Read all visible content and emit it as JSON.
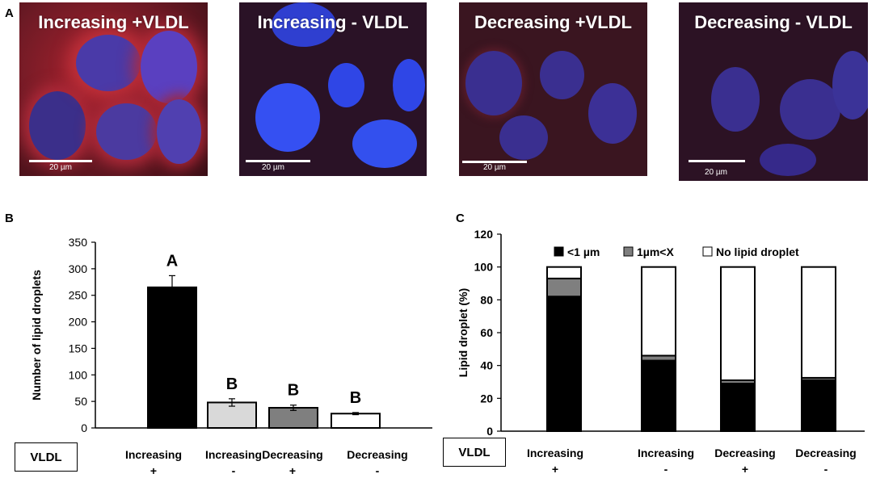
{
  "panel_a": {
    "letter": "A",
    "images": [
      {
        "caption": "Increasing +VLDL",
        "scale": "20 µm"
      },
      {
        "caption": "Increasing  - VLDL",
        "scale": "20 µm"
      },
      {
        "caption": "Decreasing +VLDL",
        "scale": "20 µm"
      },
      {
        "caption": "Decreasing - VLDL",
        "scale": "20 µm"
      }
    ]
  },
  "vldl_label": "VLDL",
  "chart_data": [
    {
      "panel": "B",
      "type": "bar",
      "categories": [
        "Increasing",
        "Increasing",
        "Decreasing",
        "Decreasing"
      ],
      "signs": [
        "+",
        "-",
        "+",
        "-"
      ],
      "values": [
        265,
        48,
        38,
        27
      ],
      "errors": [
        22,
        7,
        5,
        2
      ],
      "fills": [
        "#000000",
        "#d9d9d9",
        "#7f7f7f",
        "#ffffff"
      ],
      "letters": [
        "A",
        "B",
        "B",
        "B"
      ],
      "ylabel": "Number of lipid droplets",
      "ylim": [
        0,
        350
      ],
      "yticks": [
        "0",
        "50",
        "100",
        "150",
        "200",
        "250",
        "300",
        "350"
      ]
    },
    {
      "panel": "C",
      "type": "bar",
      "stacked": true,
      "categories": [
        "Increasing",
        "Increasing",
        "Decreasing",
        "Decreasing"
      ],
      "signs": [
        "+",
        "-",
        "+",
        "-"
      ],
      "series": [
        {
          "name": "<1 µm",
          "color": "#000000",
          "values": [
            82,
            43,
            29,
            31
          ]
        },
        {
          "name": "1µm<X",
          "color": "#7f7f7f",
          "values": [
            11,
            3,
            2,
            1.5
          ]
        },
        {
          "name": "No lipid droplet",
          "color": "#ffffff",
          "values": [
            7,
            54,
            69,
            67.5
          ]
        }
      ],
      "ylabel": "Lipid droplet (%)",
      "ylim": [
        0,
        120
      ],
      "yticks": [
        "0",
        "20",
        "40",
        "60",
        "80",
        "100",
        "120"
      ]
    }
  ]
}
